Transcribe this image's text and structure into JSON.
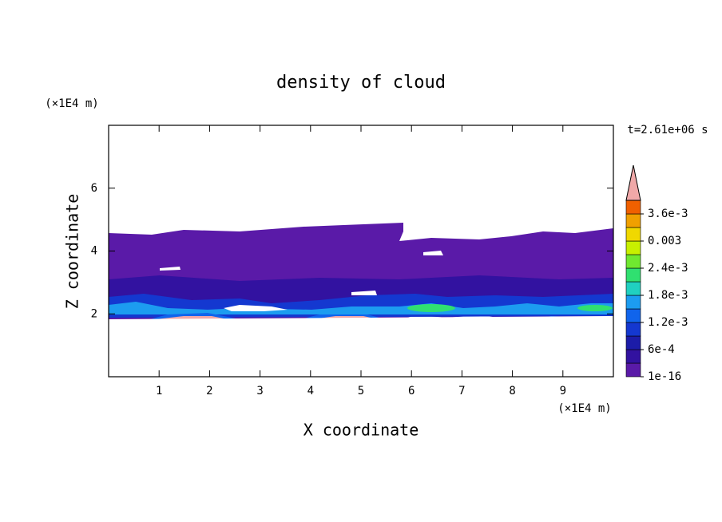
{
  "chart_data": {
    "type": "contour",
    "title": "density of cloud",
    "x_label": "X coordinate",
    "y_label": "Z coordinate",
    "x_unit": "(×1E4 m)",
    "y_unit": "(×1E4 m)",
    "time_label": "t=2.61e+06 s",
    "xlim": [
      0,
      10
    ],
    "ylim": [
      0,
      8
    ],
    "xticks": [
      1,
      2,
      3,
      4,
      5,
      6,
      7,
      8,
      9
    ],
    "yticks": [
      2,
      4,
      6
    ],
    "colorbar": {
      "levels": [
        1e-16,
        0.0003,
        0.0006,
        0.0009,
        0.0012,
        0.0015,
        0.0018,
        0.0021,
        0.0024,
        0.0027,
        0.003,
        0.0033,
        0.0036,
        0.0039
      ],
      "colors": [
        "#5a1aa8",
        "#3212a0",
        "#1c1ca8",
        "#1438d0",
        "#1064ec",
        "#1c9cf0",
        "#20d0c0",
        "#30e070",
        "#70e830",
        "#c8f000",
        "#f0d800",
        "#f0a000",
        "#f06000"
      ],
      "extend_color": "#f0a8a8",
      "ticks": [
        1e-16,
        {
          "value": 0.0006,
          "label": "6e-4"
        },
        {
          "value": 0.0012,
          "label": "1.2e-3"
        },
        {
          "value": 0.0018,
          "label": "1.8e-3"
        },
        {
          "value": 0.0024,
          "label": "2.4e-3"
        },
        0.003,
        {
          "value": 0.0036,
          "label": "3.6e-3"
        }
      ]
    }
  }
}
